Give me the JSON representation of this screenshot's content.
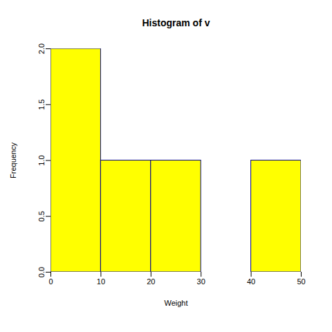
{
  "chart_data": {
    "type": "histogram",
    "title": "Histogram of v",
    "x_label": "Weight",
    "y_label": "Frequency",
    "bins": [
      0,
      10,
      20,
      30,
      40,
      50
    ],
    "values": [
      2,
      1,
      1,
      0,
      1
    ],
    "color": "#ffff00",
    "xlim": [
      0,
      50
    ],
    "xticks": [
      0,
      10,
      20,
      30,
      40,
      50
    ],
    "ylim": [
      0,
      2
    ],
    "yticks": [
      {
        "value": 0,
        "label": "0.0"
      },
      0.5,
      {
        "value": 1,
        "label": "1.0"
      },
      1.5,
      {
        "value": 2,
        "label": "2.0"
      }
    ],
    "grid": false
  }
}
